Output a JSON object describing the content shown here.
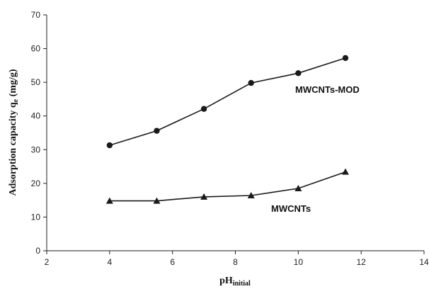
{
  "chart_data": {
    "type": "line",
    "ylabel_main": "Adsorption capacity q",
    "ylabel_sub": "e",
    "ylabel_unit": " (mg/g)",
    "xlabel_main": "pH",
    "xlabel_sub": "initial",
    "xlim": [
      2,
      14
    ],
    "ylim": [
      0,
      70
    ],
    "xticks": [
      2,
      4,
      6,
      8,
      10,
      12,
      14
    ],
    "yticks": [
      0,
      10,
      20,
      30,
      40,
      50,
      60,
      70
    ],
    "grid": false,
    "series": [
      {
        "name": "MWCNTs-MOD",
        "marker": "circle",
        "color": "#1a1a1a",
        "x": [
          4,
          5.5,
          7,
          8.5,
          10,
          11.5
        ],
        "y": [
          31.3,
          35.6,
          42.1,
          49.8,
          52.7,
          57.2
        ]
      },
      {
        "name": "MWCNTs",
        "marker": "triangle",
        "color": "#1a1a1a",
        "x": [
          4,
          5.5,
          7,
          8.5,
          10,
          11.5
        ],
        "y": [
          14.8,
          14.8,
          16.0,
          16.4,
          18.5,
          23.4
        ]
      }
    ]
  }
}
